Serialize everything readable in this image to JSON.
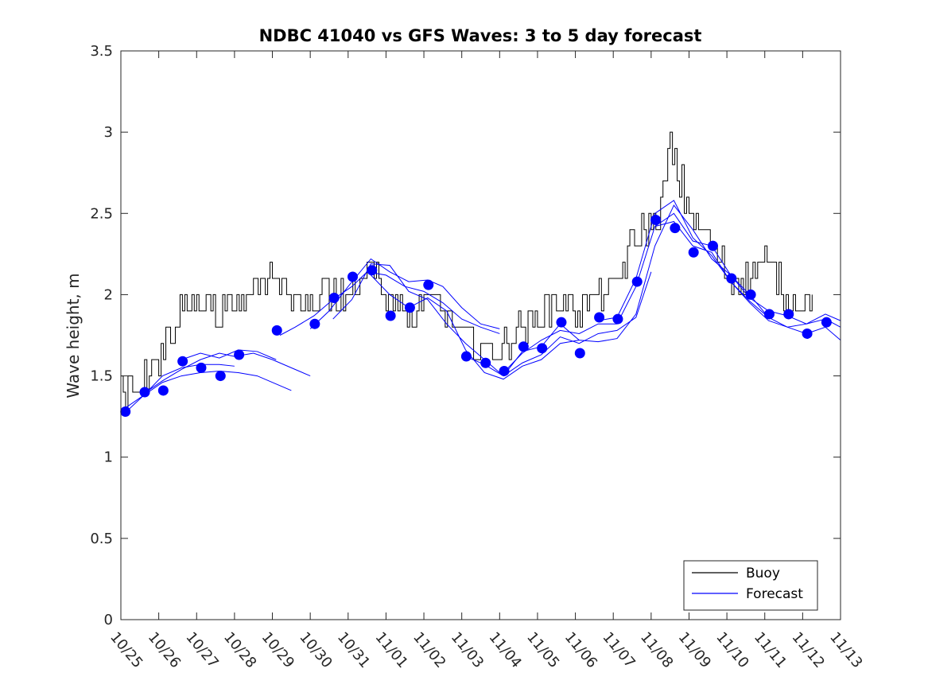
{
  "chart_data": {
    "type": "line",
    "title": "NDBC 41040 vs GFS Waves: 3 to 5 day forecast",
    "xlabel": "",
    "ylabel": "Wave height, m",
    "xlim": [
      0,
      19
    ],
    "ylim": [
      0,
      3.5
    ],
    "yticks": [
      0,
      0.5,
      1,
      1.5,
      2,
      2.5,
      3,
      3.5
    ],
    "ytick_labels": [
      "0",
      "0.5",
      "1",
      "1.5",
      "2",
      "2.5",
      "3",
      "3.5"
    ],
    "xtick_labels": [
      "10/25",
      "10/26",
      "10/27",
      "10/28",
      "10/29",
      "10/30",
      "10/31",
      "11/01",
      "11/02",
      "11/03",
      "11/04",
      "11/05",
      "11/06",
      "11/07",
      "11/08",
      "11/09",
      "11/10",
      "11/11",
      "11/12",
      "11/13"
    ],
    "legend": {
      "position": "bottom-right",
      "entries": [
        "Buoy",
        "Forecast"
      ]
    },
    "colors": {
      "buoy": "#000000",
      "forecast": "#0000ff",
      "axes": "#262626"
    },
    "buoy_series": {
      "name": "Buoy",
      "step_days": 0.0625,
      "anchors": [
        [
          0,
          1.38
        ],
        [
          0.3,
          1.42
        ],
        [
          0.5,
          1.4
        ],
        [
          0.7,
          1.5
        ],
        [
          1.0,
          1.62
        ],
        [
          1.3,
          1.75
        ],
        [
          1.6,
          1.88
        ],
        [
          1.9,
          1.92
        ],
        [
          2.2,
          1.95
        ],
        [
          2.5,
          1.9
        ],
        [
          3.0,
          1.93
        ],
        [
          3.5,
          2.05
        ],
        [
          3.9,
          2.12
        ],
        [
          4.2,
          2.1
        ],
        [
          4.6,
          1.98
        ],
        [
          5.0,
          1.95
        ],
        [
          5.5,
          1.98
        ],
        [
          6.0,
          2.0
        ],
        [
          6.3,
          2.1
        ],
        [
          6.6,
          2.2
        ],
        [
          6.9,
          2.05
        ],
        [
          7.2,
          1.92
        ],
        [
          7.6,
          1.85
        ],
        [
          8.0,
          1.95
        ],
        [
          8.4,
          1.9
        ],
        [
          8.8,
          1.8
        ],
        [
          9.2,
          1.7
        ],
        [
          9.6,
          1.65
        ],
        [
          10.0,
          1.68
        ],
        [
          10.4,
          1.78
        ],
        [
          10.8,
          1.85
        ],
        [
          11.2,
          1.92
        ],
        [
          11.6,
          1.95
        ],
        [
          12.0,
          1.9
        ],
        [
          12.5,
          2.0
        ],
        [
          13.0,
          2.05
        ],
        [
          13.3,
          2.22
        ],
        [
          13.7,
          2.38
        ],
        [
          14.0,
          2.42
        ],
        [
          14.3,
          2.6
        ],
        [
          14.6,
          2.8
        ],
        [
          14.9,
          2.6
        ],
        [
          15.2,
          2.45
        ],
        [
          15.5,
          2.32
        ],
        [
          15.8,
          2.2
        ],
        [
          16.1,
          2.08
        ],
        [
          16.5,
          2.1
        ],
        [
          16.9,
          2.22
        ],
        [
          17.2,
          2.15
        ],
        [
          17.5,
          2.0
        ],
        [
          17.8,
          1.92
        ],
        [
          18.1,
          1.95
        ],
        [
          18.3,
          2.05
        ]
      ],
      "noise_amplitude": 0.1,
      "quantum": 0.1
    },
    "forecast_points": [
      [
        0.12,
        1.28
      ],
      [
        0.63,
        1.4
      ],
      [
        1.12,
        1.41
      ],
      [
        1.63,
        1.59
      ],
      [
        2.12,
        1.55
      ],
      [
        2.63,
        1.5
      ],
      [
        3.12,
        1.63
      ],
      [
        4.12,
        1.78
      ],
      [
        5.12,
        1.82
      ],
      [
        5.63,
        1.98
      ],
      [
        6.12,
        2.11
      ],
      [
        6.63,
        2.15
      ],
      [
        7.12,
        1.87
      ],
      [
        7.63,
        1.92
      ],
      [
        8.12,
        2.06
      ],
      [
        9.12,
        1.62
      ],
      [
        9.63,
        1.58
      ],
      [
        10.12,
        1.53
      ],
      [
        10.63,
        1.68
      ],
      [
        11.12,
        1.67
      ],
      [
        11.63,
        1.83
      ],
      [
        12.12,
        1.64
      ],
      [
        12.63,
        1.86
      ],
      [
        13.12,
        1.85
      ],
      [
        13.63,
        2.08
      ],
      [
        14.12,
        2.46
      ],
      [
        14.63,
        2.41
      ],
      [
        15.12,
        2.26
      ],
      [
        15.63,
        2.3
      ],
      [
        16.12,
        2.1
      ],
      [
        16.63,
        2.0
      ],
      [
        17.12,
        1.88
      ],
      [
        17.63,
        1.88
      ],
      [
        18.12,
        1.76
      ],
      [
        18.63,
        1.83
      ]
    ],
    "forecast_lines": [
      [
        [
          0.1,
          1.27
        ],
        [
          0.6,
          1.38
        ],
        [
          1.1,
          1.5
        ],
        [
          1.6,
          1.55
        ],
        [
          2.1,
          1.57
        ],
        [
          2.6,
          1.57
        ],
        [
          3.0,
          1.56
        ]
      ],
      [
        [
          0.1,
          1.3
        ],
        [
          0.6,
          1.38
        ],
        [
          1.1,
          1.46
        ],
        [
          1.6,
          1.5
        ],
        [
          2.1,
          1.52
        ],
        [
          2.6,
          1.53
        ],
        [
          3.1,
          1.52
        ],
        [
          3.6,
          1.5
        ],
        [
          4.2,
          1.44
        ],
        [
          4.5,
          1.41
        ]
      ],
      [
        [
          0.6,
          1.39
        ],
        [
          1.1,
          1.47
        ],
        [
          1.6,
          1.54
        ],
        [
          2.1,
          1.6
        ],
        [
          2.6,
          1.64
        ],
        [
          3.0,
          1.62
        ],
        [
          3.5,
          1.64
        ],
        [
          4.0,
          1.6
        ],
        [
          4.5,
          1.55
        ],
        [
          5.0,
          1.5
        ]
      ],
      [
        [
          1.6,
          1.6
        ],
        [
          2.1,
          1.64
        ],
        [
          2.6,
          1.61
        ],
        [
          3.1,
          1.66
        ],
        [
          3.6,
          1.65
        ],
        [
          4.1,
          1.6
        ]
      ],
      [
        [
          4.2,
          1.75
        ],
        [
          4.6,
          1.8
        ],
        [
          5.1,
          1.87
        ],
        [
          5.6,
          1.97
        ],
        [
          6.1,
          2.05
        ],
        [
          6.5,
          2.14
        ],
        [
          7.0,
          2.12
        ],
        [
          7.5,
          2.05
        ],
        [
          8.0,
          2.02
        ],
        [
          8.5,
          1.95
        ],
        [
          9.0,
          1.85
        ],
        [
          9.5,
          1.8
        ],
        [
          10.0,
          1.76
        ]
      ],
      [
        [
          5.0,
          1.79
        ],
        [
          5.5,
          1.9
        ],
        [
          6.0,
          2.05
        ],
        [
          6.6,
          2.22
        ],
        [
          7.1,
          2.14
        ],
        [
          7.6,
          2.08
        ],
        [
          8.1,
          2.09
        ],
        [
          8.5,
          2.05
        ],
        [
          9.0,
          1.92
        ],
        [
          9.5,
          1.82
        ],
        [
          10.0,
          1.79
        ]
      ],
      [
        [
          5.6,
          1.85
        ],
        [
          6.1,
          1.97
        ],
        [
          6.6,
          2.19
        ],
        [
          7.1,
          2.18
        ],
        [
          7.6,
          2.02
        ],
        [
          8.1,
          1.97
        ],
        [
          8.6,
          1.82
        ],
        [
          9.1,
          1.7
        ],
        [
          9.6,
          1.6
        ],
        [
          10.1,
          1.5
        ],
        [
          10.6,
          1.58
        ],
        [
          11.1,
          1.63
        ],
        [
          11.6,
          1.74
        ],
        [
          12.1,
          1.7
        ],
        [
          12.6,
          1.76
        ],
        [
          13.1,
          1.78
        ],
        [
          13.6,
          1.86
        ],
        [
          14.0,
          2.14
        ]
      ],
      [
        [
          6.6,
          2.12
        ],
        [
          7.1,
          2.0
        ],
        [
          7.6,
          1.92
        ],
        [
          8.1,
          1.98
        ],
        [
          8.6,
          1.9
        ],
        [
          9.1,
          1.66
        ],
        [
          9.6,
          1.52
        ],
        [
          10.1,
          1.48
        ],
        [
          10.6,
          1.56
        ],
        [
          11.1,
          1.6
        ],
        [
          11.6,
          1.7
        ],
        [
          12.1,
          1.72
        ]
      ],
      [
        [
          9.1,
          1.62
        ],
        [
          9.6,
          1.57
        ],
        [
          10.1,
          1.5
        ],
        [
          10.6,
          1.65
        ],
        [
          11.1,
          1.68
        ],
        [
          11.6,
          1.82
        ],
        [
          12.1,
          1.72
        ],
        [
          12.6,
          1.71
        ],
        [
          13.1,
          1.73
        ],
        [
          13.6,
          1.88
        ],
        [
          14.1,
          2.3
        ],
        [
          14.6,
          2.55
        ],
        [
          15.1,
          2.4
        ],
        [
          15.6,
          2.22
        ],
        [
          16.1,
          2.12
        ],
        [
          16.6,
          2.0
        ],
        [
          17.1,
          1.86
        ]
      ],
      [
        [
          10.1,
          1.52
        ],
        [
          10.6,
          1.64
        ],
        [
          11.1,
          1.72
        ],
        [
          11.6,
          1.78
        ],
        [
          12.1,
          1.76
        ],
        [
          12.6,
          1.82
        ],
        [
          13.1,
          1.82
        ],
        [
          13.6,
          2.05
        ],
        [
          14.1,
          2.42
        ],
        [
          14.6,
          2.5
        ],
        [
          15.1,
          2.33
        ],
        [
          15.6,
          2.3
        ],
        [
          16.1,
          2.12
        ],
        [
          16.6,
          1.98
        ],
        [
          17.1,
          1.9
        ],
        [
          17.6,
          1.87
        ],
        [
          18.1,
          1.82
        ],
        [
          18.6,
          1.85
        ],
        [
          19.0,
          1.8
        ]
      ],
      [
        [
          12.6,
          1.84
        ],
        [
          13.1,
          1.86
        ],
        [
          13.6,
          2.1
        ],
        [
          14.1,
          2.5
        ],
        [
          14.6,
          2.58
        ],
        [
          15.1,
          2.35
        ],
        [
          15.6,
          2.24
        ],
        [
          16.1,
          2.08
        ],
        [
          16.6,
          1.95
        ],
        [
          17.1,
          1.84
        ],
        [
          17.6,
          1.8
        ],
        [
          18.1,
          1.82
        ],
        [
          18.6,
          1.88
        ],
        [
          19.0,
          1.84
        ]
      ],
      [
        [
          14.1,
          2.42
        ],
        [
          14.6,
          2.45
        ],
        [
          15.1,
          2.3
        ],
        [
          15.6,
          2.26
        ],
        [
          16.1,
          2.08
        ],
        [
          16.6,
          1.96
        ],
        [
          17.1,
          1.86
        ],
        [
          17.6,
          1.8
        ],
        [
          18.1,
          1.76
        ],
        [
          18.6,
          1.8
        ],
        [
          19.0,
          1.72
        ]
      ]
    ]
  }
}
